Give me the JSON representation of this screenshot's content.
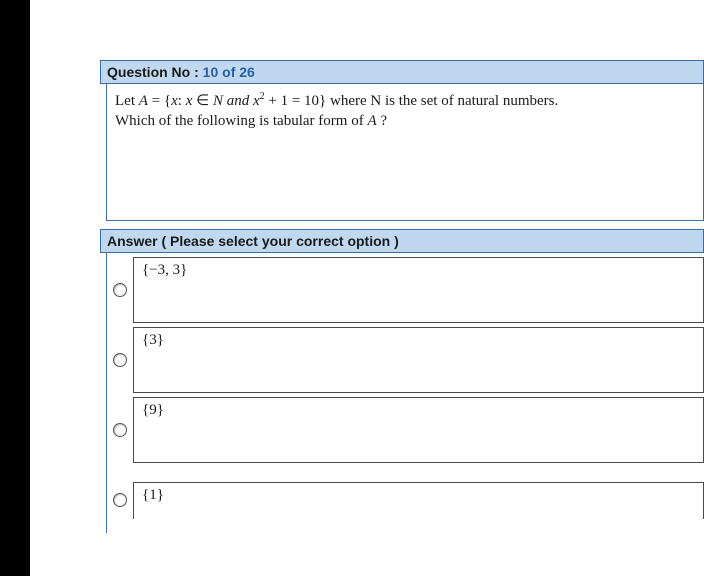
{
  "colors": {
    "header_bg": "#bfd8ef",
    "header_border": "#3a6ea5",
    "option_border": "#4a4a4a",
    "text": "#1a1a1a",
    "number": "#2b5fa3",
    "black_strip": "#000000",
    "page_bg": "#ffffff"
  },
  "fonts": {
    "header_family": "Arial",
    "body_family": "Times New Roman",
    "header_size_pt": 10.5,
    "body_size_pt": 11
  },
  "question": {
    "label_prefix": "Question No : ",
    "current": "10",
    "sep": " of ",
    "total": "26",
    "line1_a": "Let ",
    "line1_A": "A",
    "line1_b": " = {",
    "line1_x": "x",
    "line1_c": ": ",
    "line1_x2": "x",
    "line1_d": " ∈ ",
    "line1_N": "N",
    "line1_e": " and ",
    "line1_x3": "x",
    "line1_sup": "2",
    "line1_f": " + 1 = 10}  where N is the set of natural numbers.",
    "line2_a": "Which of the following is tabular form of ",
    "line2_A": "A",
    "line2_b": " ?"
  },
  "answer_header": "Answer ( Please select your correct option )",
  "options": [
    {
      "text": "{−3, 3}"
    },
    {
      "text": "{3}"
    },
    {
      "text": "{9}"
    },
    {
      "text": "{1}"
    }
  ]
}
